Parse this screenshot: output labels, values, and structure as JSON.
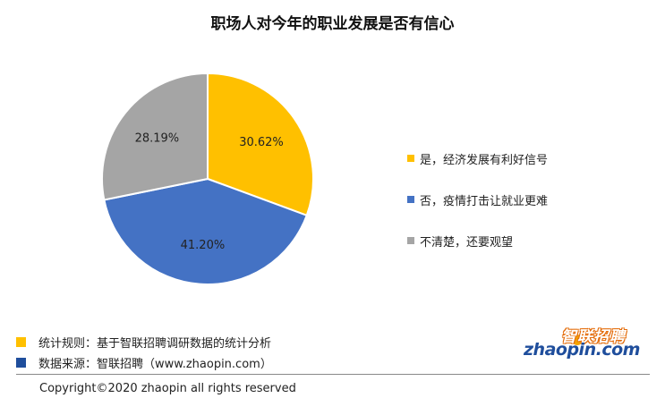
{
  "title": "职场人对今年的职业发展是否有信心",
  "chart_data": {
    "type": "pie",
    "title": "职场人对今年的职业发展是否有信心",
    "slices": [
      {
        "label": "是，经济发展有利好信号",
        "value": 30.62,
        "display": "30.62%",
        "color": "#FFC000"
      },
      {
        "label": "否，疫情打击让就业更难",
        "value": 41.2,
        "display": "41.20%",
        "color": "#4472C4"
      },
      {
        "label": "不清楚，还要观望",
        "value": 28.19,
        "display": "28.19%",
        "color": "#A5A5A5"
      }
    ],
    "legend_position": "right"
  },
  "notes": [
    {
      "text": "统计规则：基于智联招聘调研数据的统计分析",
      "color": "#FFC000"
    },
    {
      "text": "数据来源：智联招聘（www.zhaopin.com）",
      "color": "#1F4E9C"
    }
  ],
  "copyright": "Copyright©2020 zhaopin all rights reserved",
  "logo": {
    "cn": "智联招聘",
    "en": "zhaopin.com"
  }
}
